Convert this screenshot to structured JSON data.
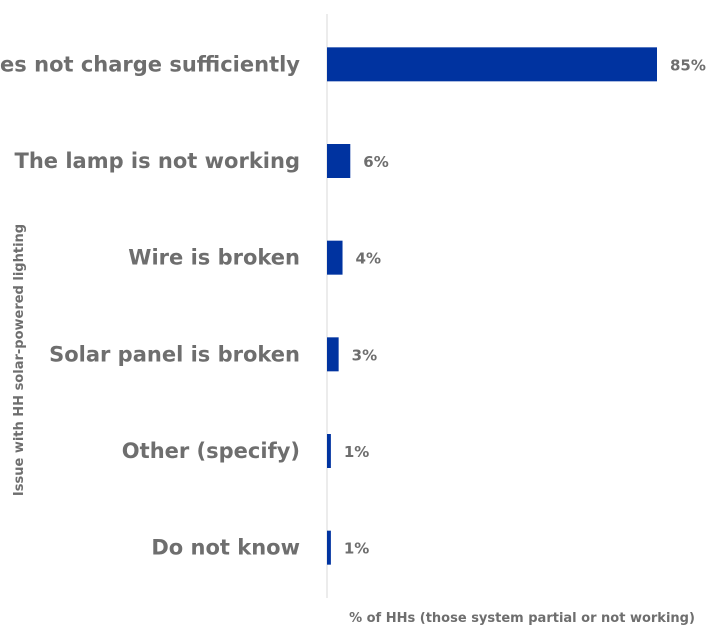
{
  "chart_data": {
    "type": "bar",
    "orientation": "horizontal",
    "categories": [
      "Does not charge sufficiently",
      "The lamp is not working",
      "Wire is broken",
      "Solar panel is broken",
      "Other (specify)",
      "Do not know"
    ],
    "values": [
      85,
      6,
      4,
      3,
      1,
      1
    ],
    "value_labels": [
      "85%",
      "6%",
      "4%",
      "3%",
      "1%",
      "1%"
    ],
    "xlabel": "% of HHs (those system partial or not working)",
    "ylabel": "Issue with HH solar-powered lighting",
    "xlim": [
      0,
      85
    ],
    "grid": false,
    "legend": "none",
    "bar_color": "#0033a0",
    "axis_line_color": "#d9d9d9",
    "text_color": "#6e6e6e"
  }
}
